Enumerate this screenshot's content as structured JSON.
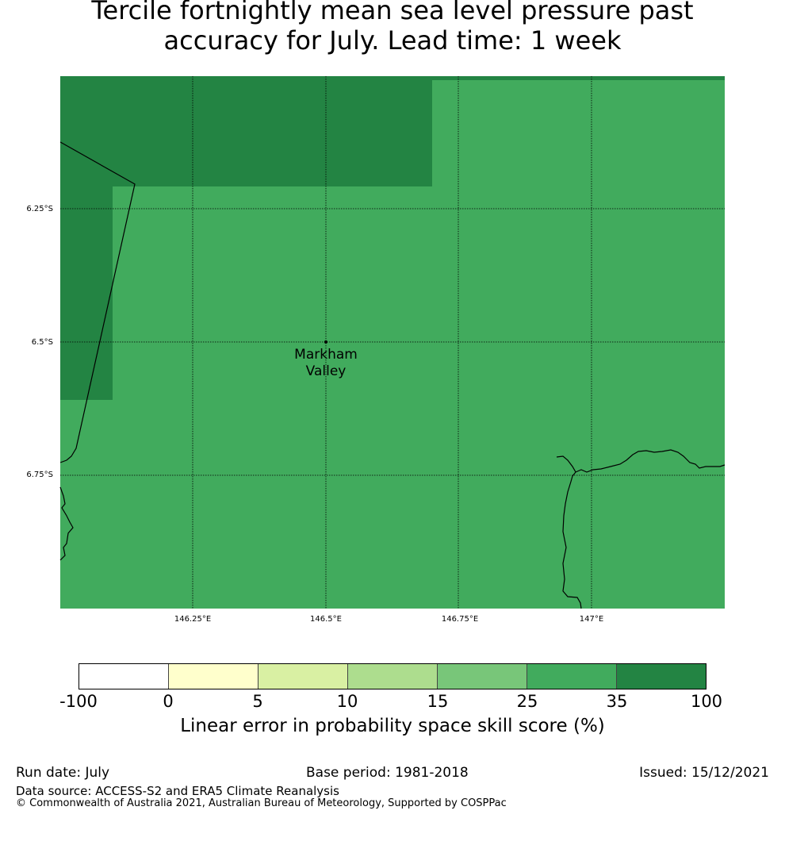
{
  "title_line1": "Tercile fortnightly mean sea level pressure past",
  "title_line2": "accuracy for July. Lead time: 1 week",
  "map": {
    "place_label_line1": "Markham",
    "place_label_line2": "Valley",
    "lon_ticks": [
      "146.25°E",
      "146.5°E",
      "146.75°E",
      "147°E"
    ],
    "lat_ticks": [
      "6.25°S",
      "6.5°S",
      "6.75°S"
    ]
  },
  "colorbar": {
    "colors": [
      "#ffffff",
      "#ffffcc",
      "#d9f0a3",
      "#addd8e",
      "#78c679",
      "#41ab5d",
      "#238443"
    ],
    "ticks": [
      "-100",
      "0",
      "5",
      "10",
      "15",
      "25",
      "35",
      "100"
    ],
    "label": "Linear error in probability space skill score (%)"
  },
  "footer": {
    "run_date": "Run date: July",
    "base_period": "Base period: 1981-2018",
    "issued": "Issued: 15/12/2021",
    "data_source": "Data source: ACCESS-S2 and ERA5 Climate Reanalysis",
    "copyright": "© Commonwealth of Australia 2021, Australian Bureau of Meteorology, Supported by COSPPac"
  }
}
